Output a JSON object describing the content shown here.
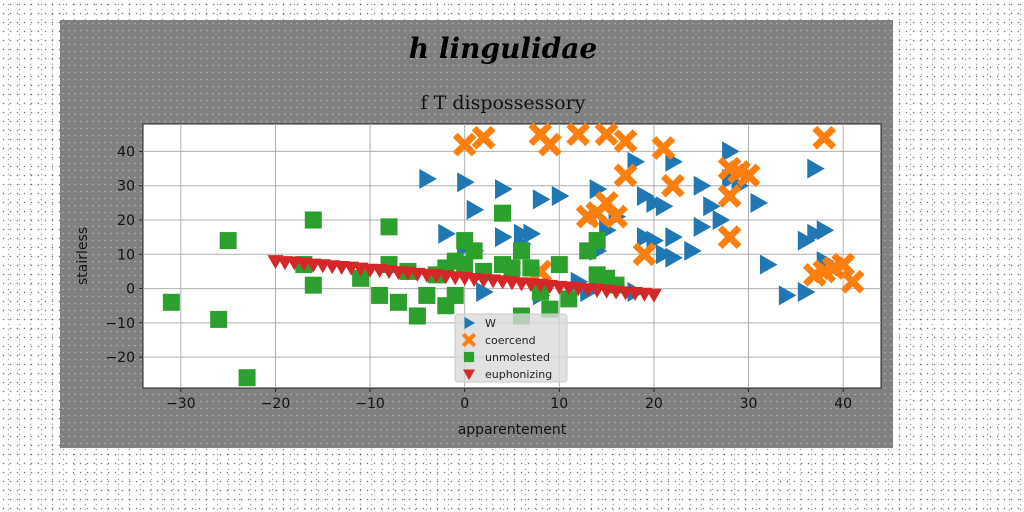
{
  "figure": {
    "suptitle": "h lingulidae",
    "background": "#808080"
  },
  "chart_data": {
    "type": "scatter",
    "title": "f T dispossessory",
    "xlabel": "apparentement",
    "ylabel": "stairless",
    "xlim": [
      -34,
      44
    ],
    "ylim": [
      -29,
      48
    ],
    "xticks": [
      -30,
      -20,
      -10,
      0,
      10,
      20,
      30,
      40
    ],
    "yticks": [
      -20,
      -10,
      0,
      10,
      20,
      30,
      40
    ],
    "xtick_labels": [
      "−30",
      "−20",
      "−10",
      "0",
      "10",
      "20",
      "30",
      "40"
    ],
    "ytick_labels": [
      "−20",
      "−10",
      "0",
      "10",
      "20",
      "30",
      "40"
    ],
    "grid": true,
    "legend_position": "lower center",
    "series": [
      {
        "name": "W",
        "marker": "triangle-right",
        "color": "#1f77b4",
        "points": [
          [
            -4,
            32
          ],
          [
            0,
            31
          ],
          [
            1,
            23
          ],
          [
            4,
            29
          ],
          [
            4,
            15
          ],
          [
            6,
            16
          ],
          [
            -2,
            16
          ],
          [
            0,
            12
          ],
          [
            1,
            11
          ],
          [
            6,
            13
          ],
          [
            7,
            16
          ],
          [
            8,
            26
          ],
          [
            10,
            27
          ],
          [
            14,
            29
          ],
          [
            15,
            17
          ],
          [
            14,
            11
          ],
          [
            16,
            21
          ],
          [
            18,
            37
          ],
          [
            19,
            27
          ],
          [
            20,
            25
          ],
          [
            21,
            24
          ],
          [
            22,
            37
          ],
          [
            22,
            15
          ],
          [
            22,
            9
          ],
          [
            25,
            30
          ],
          [
            26,
            24
          ],
          [
            27,
            20
          ],
          [
            28,
            40
          ],
          [
            29,
            30
          ],
          [
            28,
            32
          ],
          [
            31,
            25
          ],
          [
            32,
            7
          ],
          [
            34,
            -2
          ],
          [
            36,
            -1
          ],
          [
            37,
            35
          ],
          [
            36,
            14
          ],
          [
            37,
            16
          ],
          [
            38,
            17
          ],
          [
            38,
            8
          ],
          [
            2,
            -1
          ],
          [
            8,
            -2
          ],
          [
            13,
            -1
          ],
          [
            14,
            1
          ],
          [
            19,
            15
          ],
          [
            20,
            14
          ],
          [
            21,
            10
          ],
          [
            24,
            11
          ],
          [
            25,
            18
          ],
          [
            18,
            -1
          ],
          [
            12,
            2
          ]
        ]
      },
      {
        "name": "coercend",
        "marker": "x",
        "color": "#ff7f0e",
        "points": [
          [
            0,
            42
          ],
          [
            2,
            44
          ],
          [
            8,
            45
          ],
          [
            9,
            42
          ],
          [
            12,
            45
          ],
          [
            15,
            45
          ],
          [
            17,
            43
          ],
          [
            21,
            41
          ],
          [
            17,
            33
          ],
          [
            22,
            30
          ],
          [
            14,
            22
          ],
          [
            15,
            25
          ],
          [
            16,
            21
          ],
          [
            13,
            21
          ],
          [
            19,
            10
          ],
          [
            28,
            35
          ],
          [
            28,
            27
          ],
          [
            28,
            15
          ],
          [
            29,
            34
          ],
          [
            30,
            33
          ],
          [
            37,
            4
          ],
          [
            38,
            5
          ],
          [
            40,
            7
          ],
          [
            41,
            2
          ],
          [
            39,
            6
          ],
          [
            38,
            44
          ],
          [
            8,
            5
          ]
        ]
      },
      {
        "name": "unmolested",
        "marker": "square",
        "color": "#2ca02c",
        "points": [
          [
            -31,
            -4
          ],
          [
            -26,
            -9
          ],
          [
            -25,
            14
          ],
          [
            -23,
            -26
          ],
          [
            -16,
            20
          ],
          [
            -16,
            1
          ],
          [
            -8,
            18
          ],
          [
            -8,
            7
          ],
          [
            -9,
            -2
          ],
          [
            -7,
            -4
          ],
          [
            -5,
            -8
          ],
          [
            -4,
            -2
          ],
          [
            -3,
            4
          ],
          [
            -2,
            6
          ],
          [
            -2,
            -5
          ],
          [
            -1,
            -2
          ],
          [
            0,
            14
          ],
          [
            0,
            7
          ],
          [
            1,
            11
          ],
          [
            -1,
            8
          ],
          [
            2,
            5
          ],
          [
            4,
            22
          ],
          [
            4,
            7
          ],
          [
            5,
            6
          ],
          [
            6,
            11
          ],
          [
            7,
            6
          ],
          [
            8,
            -1
          ],
          [
            9,
            -6
          ],
          [
            10,
            7
          ],
          [
            11,
            -3
          ],
          [
            13,
            11
          ],
          [
            14,
            14
          ],
          [
            14,
            4
          ],
          [
            15,
            3
          ],
          [
            16,
            1
          ],
          [
            -11,
            3
          ],
          [
            -6,
            5
          ],
          [
            6,
            -8
          ],
          [
            -17,
            7
          ]
        ]
      },
      {
        "name": "euphonizing",
        "marker": "triangle-down",
        "color": "#d62728",
        "points": [
          [
            -20.0,
            8.0
          ],
          [
            -19.0,
            7.7
          ],
          [
            -18.0,
            7.6
          ],
          [
            -17.0,
            7.3
          ],
          [
            -16.0,
            7.0
          ],
          [
            -15.0,
            6.8
          ],
          [
            -14.0,
            6.5
          ],
          [
            -13.0,
            6.3
          ],
          [
            -12.0,
            6.1
          ],
          [
            -11.0,
            5.8
          ],
          [
            -10.0,
            5.5
          ],
          [
            -9.0,
            5.4
          ],
          [
            -8.0,
            5.1
          ],
          [
            -7.0,
            4.8
          ],
          [
            -6.0,
            4.6
          ],
          [
            -5.0,
            4.3
          ],
          [
            -4.0,
            4.0
          ],
          [
            -3.0,
            3.9
          ],
          [
            -2.0,
            3.6
          ],
          [
            -1.0,
            3.3
          ],
          [
            0.0,
            3.1
          ],
          [
            1.0,
            2.8
          ],
          [
            2.0,
            2.5
          ],
          [
            3.0,
            2.4
          ],
          [
            4.0,
            2.1
          ],
          [
            5.0,
            1.8
          ],
          [
            6.0,
            1.5
          ],
          [
            7.0,
            1.3
          ],
          [
            8.0,
            1.1
          ],
          [
            9.0,
            0.8
          ],
          [
            10.0,
            0.5
          ],
          [
            11.0,
            0.3
          ],
          [
            12.0,
            0.1
          ],
          [
            13.0,
            -0.2
          ],
          [
            14.0,
            -0.4
          ],
          [
            15.0,
            -0.6
          ],
          [
            16.0,
            -0.9
          ],
          [
            17.0,
            -1.1
          ],
          [
            18.0,
            -1.3
          ],
          [
            19.0,
            -1.5
          ],
          [
            20.0,
            -1.8
          ]
        ]
      }
    ]
  }
}
